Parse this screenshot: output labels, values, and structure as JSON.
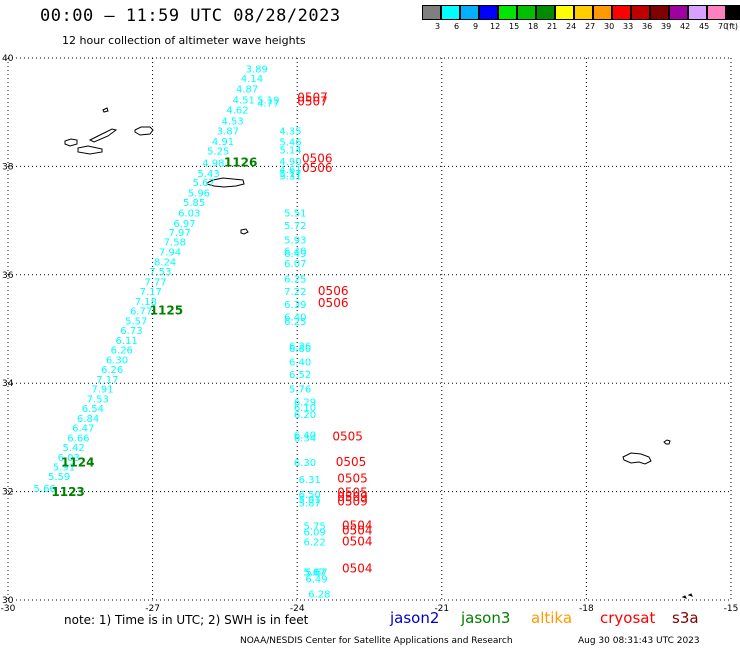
{
  "header": {
    "title": "00:00 — 11:59 UTC 08/28/2023",
    "subtitle": "12 hour collection of altimeter wave heights"
  },
  "color_scale": {
    "unit_label": "(ft)",
    "labels": [
      "3",
      "6",
      "9",
      "12",
      "15",
      "18",
      "21",
      "24",
      "27",
      "30",
      "33",
      "36",
      "39",
      "42",
      "45",
      "70"
    ],
    "colors": [
      "#7f7f7f",
      "#00ffff",
      "#00b0ff",
      "#0000ff",
      "#00e600",
      "#00c000",
      "#008a00",
      "#ffff00",
      "#ffcc00",
      "#ff9900",
      "#ff0000",
      "#c00000",
      "#800000",
      "#a000a0",
      "#d8a0ff",
      "#ff80c0",
      "#000000"
    ]
  },
  "axes": {
    "lon_ticks": [
      "-30",
      "-27",
      "-24",
      "-21",
      "-18",
      "-15"
    ],
    "lat_ticks": [
      "40",
      "38",
      "36",
      "34",
      "32",
      "30"
    ]
  },
  "colors": {
    "jason2": "#0000cc",
    "jason3": "#008000",
    "altika": "#ff9900",
    "cryosat": "#ff0000",
    "s3a": "#800000",
    "track_swh": "#00ffff",
    "time_jason3": "#008000",
    "time_s3a": "#ff0000",
    "coast": "#000000",
    "grid": "#000000"
  },
  "legend": {
    "note": "note:  1) Time is in UTC; 2) SWH is in feet",
    "items": [
      {
        "name": "jason2",
        "color": "#0000cc"
      },
      {
        "name": "jason3",
        "color": "#008000"
      },
      {
        "name": "altika",
        "color": "#ff9900"
      },
      {
        "name": "cryosat",
        "color": "#ff0000"
      },
      {
        "name": "s3a",
        "color": "#800000"
      }
    ]
  },
  "footer": {
    "credit": "NOAA/NESDIS Center for Satellite Applications and Research",
    "timestamp": "Aug 30 08:31:43 UTC 2023"
  },
  "track_a": {
    "swh": [
      {
        "lon": -25.07,
        "lat": 39.81,
        "v": "3.89"
      },
      {
        "lon": -25.17,
        "lat": 39.63,
        "v": "4.14"
      },
      {
        "lon": -25.27,
        "lat": 39.44,
        "v": "4.87"
      },
      {
        "lon": -25.34,
        "lat": 39.23,
        "v": "4.51"
      },
      {
        "lon": -24.83,
        "lat": 39.23,
        "v": "5.19"
      },
      {
        "lon": -24.83,
        "lat": 39.18,
        "v": "4.77"
      },
      {
        "lon": -25.47,
        "lat": 39.05,
        "v": "4.62"
      },
      {
        "lon": -25.57,
        "lat": 38.85,
        "v": "4.53"
      },
      {
        "lon": -25.67,
        "lat": 38.66,
        "v": "3.87"
      },
      {
        "lon": -24.37,
        "lat": 38.66,
        "v": "4.35"
      },
      {
        "lon": -25.77,
        "lat": 38.47,
        "v": "4.91"
      },
      {
        "lon": -24.37,
        "lat": 38.46,
        "v": "5.46"
      },
      {
        "lon": -24.37,
        "lat": 38.31,
        "v": "5.14"
      },
      {
        "lon": -25.87,
        "lat": 38.29,
        "v": "5.25"
      },
      {
        "lon": -24.37,
        "lat": 38.1,
        "v": "4.90"
      },
      {
        "lon": -25.97,
        "lat": 38.07,
        "v": "4.98"
      },
      {
        "lon": -26.07,
        "lat": 37.88,
        "v": "5.43"
      },
      {
        "lon": -24.37,
        "lat": 37.95,
        "v": "4.61"
      },
      {
        "lon": -24.37,
        "lat": 37.88,
        "v": "5.17"
      },
      {
        "lon": -24.37,
        "lat": 37.83,
        "v": "5.31"
      },
      {
        "lon": -26.17,
        "lat": 37.71,
        "v": "5.67"
      },
      {
        "lon": -26.27,
        "lat": 37.52,
        "v": "5.96"
      },
      {
        "lon": -26.37,
        "lat": 37.34,
        "v": "5.85"
      },
      {
        "lon": -26.47,
        "lat": 37.15,
        "v": "6.03"
      },
      {
        "lon": -24.27,
        "lat": 37.15,
        "v": "5.51"
      },
      {
        "lon": -26.57,
        "lat": 36.96,
        "v": "6.97"
      },
      {
        "lon": -24.27,
        "lat": 36.92,
        "v": "5.72"
      },
      {
        "lon": -26.67,
        "lat": 36.79,
        "v": "7.97"
      },
      {
        "lon": -26.77,
        "lat": 36.61,
        "v": "7.58"
      },
      {
        "lon": -24.27,
        "lat": 36.65,
        "v": "5.93"
      },
      {
        "lon": -26.87,
        "lat": 36.43,
        "v": "7.94"
      },
      {
        "lon": -24.27,
        "lat": 36.45,
        "v": "6.40"
      },
      {
        "lon": -24.27,
        "lat": 36.4,
        "v": "6.49"
      },
      {
        "lon": -26.97,
        "lat": 36.25,
        "v": "8.24"
      },
      {
        "lon": -24.27,
        "lat": 36.22,
        "v": "6.07"
      },
      {
        "lon": -27.07,
        "lat": 36.07,
        "v": "7.53"
      },
      {
        "lon": -27.17,
        "lat": 35.88,
        "v": "7.77"
      },
      {
        "lon": -24.27,
        "lat": 35.93,
        "v": "6.25"
      },
      {
        "lon": -27.27,
        "lat": 35.7,
        "v": "7.17"
      },
      {
        "lon": -24.27,
        "lat": 35.7,
        "v": "7.22"
      },
      {
        "lon": -27.37,
        "lat": 35.52,
        "v": "7.18"
      },
      {
        "lon": -24.27,
        "lat": 35.46,
        "v": "6.39"
      },
      {
        "lon": -27.47,
        "lat": 35.34,
        "v": "6.77"
      },
      {
        "lon": -24.27,
        "lat": 35.23,
        "v": "6.40"
      },
      {
        "lon": -24.27,
        "lat": 35.15,
        "v": "6.25"
      },
      {
        "lon": -27.57,
        "lat": 35.16,
        "v": "5.57"
      },
      {
        "lon": -27.67,
        "lat": 34.98,
        "v": "6.73"
      },
      {
        "lon": -27.77,
        "lat": 34.8,
        "v": "6.11"
      },
      {
        "lon": -24.17,
        "lat": 34.7,
        "v": "6.26"
      },
      {
        "lon": -24.17,
        "lat": 34.65,
        "v": "6.80"
      },
      {
        "lon": -27.87,
        "lat": 34.62,
        "v": "6.26"
      },
      {
        "lon": -27.97,
        "lat": 34.44,
        "v": "6.30"
      },
      {
        "lon": -24.17,
        "lat": 34.4,
        "v": "6.40"
      },
      {
        "lon": -28.07,
        "lat": 34.26,
        "v": "6.26"
      },
      {
        "lon": -24.17,
        "lat": 34.17,
        "v": "6.52"
      },
      {
        "lon": -28.17,
        "lat": 34.08,
        "v": "7.17"
      },
      {
        "lon": -28.27,
        "lat": 33.9,
        "v": "7.91"
      },
      {
        "lon": -24.17,
        "lat": 33.9,
        "v": "5.76"
      },
      {
        "lon": -28.37,
        "lat": 33.72,
        "v": "7.53"
      },
      {
        "lon": -24.07,
        "lat": 33.66,
        "v": "6.29"
      },
      {
        "lon": -24.07,
        "lat": 33.56,
        "v": "6.10"
      },
      {
        "lon": -28.47,
        "lat": 33.54,
        "v": "6.54"
      },
      {
        "lon": -24.07,
        "lat": 33.43,
        "v": "6.20"
      },
      {
        "lon": -28.57,
        "lat": 33.36,
        "v": "6.84"
      },
      {
        "lon": -28.67,
        "lat": 33.18,
        "v": "6.47"
      },
      {
        "lon": -24.07,
        "lat": 33.05,
        "v": "6.40"
      },
      {
        "lon": -24.07,
        "lat": 33.0,
        "v": "6.34"
      },
      {
        "lon": -28.77,
        "lat": 33.0,
        "v": "6.66"
      },
      {
        "lon": -28.87,
        "lat": 32.82,
        "v": "5.42"
      },
      {
        "lon": -28.97,
        "lat": 32.64,
        "v": "6.03"
      },
      {
        "lon": -24.07,
        "lat": 32.55,
        "v": "6.30"
      },
      {
        "lon": -29.07,
        "lat": 32.46,
        "v": "5.91"
      },
      {
        "lon": -29.17,
        "lat": 32.29,
        "v": "5.59"
      },
      {
        "lon": -23.97,
        "lat": 32.23,
        "v": "6.31"
      },
      {
        "lon": -29.47,
        "lat": 32.07,
        "v": "5.66"
      },
      {
        "lon": -23.97,
        "lat": 31.96,
        "v": "6.50"
      },
      {
        "lon": -23.97,
        "lat": 31.86,
        "v": "5.91"
      },
      {
        "lon": -23.97,
        "lat": 31.8,
        "v": "5.87"
      },
      {
        "lon": -23.87,
        "lat": 31.37,
        "v": "5.75"
      },
      {
        "lon": -23.87,
        "lat": 31.26,
        "v": "6.09"
      },
      {
        "lon": -23.87,
        "lat": 31.08,
        "v": "6.22"
      },
      {
        "lon": -23.87,
        "lat": 30.53,
        "v": "5.67"
      },
      {
        "lon": -23.87,
        "lat": 30.53,
        "v": "5.67"
      },
      {
        "lon": -23.87,
        "lat": 30.53,
        "v": "5.67"
      }
    ],
    "swh_b": [
      {
        "lon": -23.83,
        "lat": 30.53,
        "v": "5.67"
      },
      {
        "lon": -23.83,
        "lat": 30.4,
        "v": "6.49"
      },
      {
        "lon": -23.77,
        "lat": 30.12,
        "v": "6.28"
      }
    ],
    "times_jason3": [
      {
        "lon": -25.52,
        "lat": 38.07,
        "v": "1126"
      },
      {
        "lon": -27.06,
        "lat": 35.34,
        "v": "1125"
      },
      {
        "lon": -28.9,
        "lat": 32.54,
        "v": "1124"
      },
      {
        "lon": -29.1,
        "lat": 31.99,
        "v": "1123"
      }
    ],
    "times_s3a": [
      {
        "lon": -24.0,
        "lat": 39.27,
        "v": "0507"
      },
      {
        "lon": -24.0,
        "lat": 39.2,
        "v": "0507"
      },
      {
        "lon": -23.9,
        "lat": 38.15,
        "v": "0506"
      },
      {
        "lon": -23.9,
        "lat": 37.97,
        "v": "0506"
      },
      {
        "lon": -23.57,
        "lat": 35.7,
        "v": "0506"
      },
      {
        "lon": -23.57,
        "lat": 35.48,
        "v": "0506"
      },
      {
        "lon": -23.27,
        "lat": 33.02,
        "v": "0505"
      },
      {
        "lon": -23.2,
        "lat": 32.55,
        "v": "0505"
      },
      {
        "lon": -23.17,
        "lat": 32.24,
        "v": "0505"
      },
      {
        "lon": -23.17,
        "lat": 31.98,
        "v": "0505"
      },
      {
        "lon": -23.17,
        "lat": 31.9,
        "v": "0509"
      },
      {
        "lon": -23.17,
        "lat": 31.82,
        "v": "0509"
      },
      {
        "lon": -23.07,
        "lat": 31.37,
        "v": "0504"
      },
      {
        "lon": -23.07,
        "lat": 31.28,
        "v": "0504"
      },
      {
        "lon": -23.07,
        "lat": 31.08,
        "v": "0504"
      },
      {
        "lon": -23.07,
        "lat": 30.58,
        "v": "0504"
      }
    ]
  }
}
